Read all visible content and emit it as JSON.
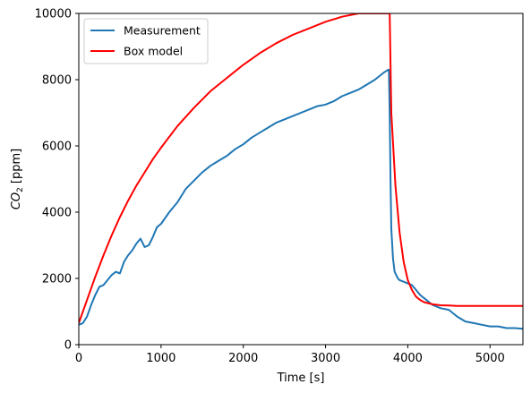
{
  "chart_data": {
    "type": "line",
    "xlabel": "Time [s]",
    "ylabel": "CO",
    "ylabel_subscript": "2",
    "ylabel_unit": "[ppm]",
    "xlim": [
      0,
      5400
    ],
    "ylim": [
      0,
      10000
    ],
    "xticks": [
      0,
      1000,
      2000,
      3000,
      4000,
      5000
    ],
    "yticks": [
      0,
      2000,
      4000,
      6000,
      8000,
      10000
    ],
    "grid": false,
    "legend_position": "top-left",
    "series": [
      {
        "name": "Measurement",
        "color": "#1f77b4",
        "x": [
          0,
          50,
          100,
          150,
          200,
          250,
          300,
          350,
          400,
          450,
          500,
          550,
          600,
          650,
          700,
          750,
          800,
          850,
          900,
          950,
          1000,
          1100,
          1200,
          1300,
          1400,
          1500,
          1600,
          1700,
          1800,
          1900,
          2000,
          2100,
          2200,
          2300,
          2400,
          2500,
          2600,
          2700,
          2800,
          2900,
          3000,
          3100,
          3200,
          3300,
          3400,
          3500,
          3600,
          3700,
          3760,
          3770,
          3780,
          3790,
          3800,
          3820,
          3840,
          3860,
          3880,
          3900,
          3950,
          4000,
          4050,
          4100,
          4150,
          4200,
          4300,
          4400,
          4500,
          4600,
          4700,
          4800,
          4900,
          5000,
          5100,
          5200,
          5300,
          5400
        ],
        "values": [
          600,
          650,
          850,
          1200,
          1500,
          1750,
          1800,
          1950,
          2100,
          2200,
          2150,
          2500,
          2700,
          2850,
          3050,
          3200,
          2950,
          3000,
          3250,
          3550,
          3650,
          4000,
          4300,
          4700,
          4950,
          5200,
          5400,
          5550,
          5700,
          5900,
          6050,
          6250,
          6400,
          6550,
          6700,
          6800,
          6900,
          7000,
          7100,
          7200,
          7250,
          7350,
          7500,
          7600,
          7700,
          7850,
          8000,
          8200,
          8300,
          8300,
          7000,
          5000,
          3500,
          2600,
          2200,
          2100,
          2000,
          1950,
          1900,
          1850,
          1800,
          1650,
          1500,
          1400,
          1200,
          1100,
          1050,
          850,
          700,
          650,
          600,
          550,
          550,
          500,
          500,
          480
        ]
      },
      {
        "name": "Box model",
        "color": "#ff0000",
        "x": [
          0,
          100,
          200,
          300,
          400,
          500,
          600,
          700,
          800,
          900,
          1000,
          1200,
          1400,
          1600,
          1800,
          2000,
          2200,
          2400,
          2600,
          2800,
          3000,
          3200,
          3400,
          3600,
          3700,
          3780,
          3790,
          3800,
          3850,
          3900,
          3950,
          4000,
          4050,
          4100,
          4150,
          4200,
          4300,
          4400,
          4500,
          4600,
          4800,
          5000,
          5200,
          5400
        ],
        "values": [
          650,
          1350,
          2050,
          2700,
          3300,
          3850,
          4350,
          4800,
          5200,
          5600,
          5950,
          6600,
          7150,
          7650,
          8050,
          8450,
          8800,
          9100,
          9350,
          9550,
          9750,
          9900,
          10000,
          10000,
          10000,
          10000,
          8500,
          7000,
          4800,
          3400,
          2500,
          1950,
          1650,
          1450,
          1350,
          1280,
          1220,
          1190,
          1180,
          1170,
          1170,
          1170,
          1170,
          1170
        ]
      }
    ]
  }
}
